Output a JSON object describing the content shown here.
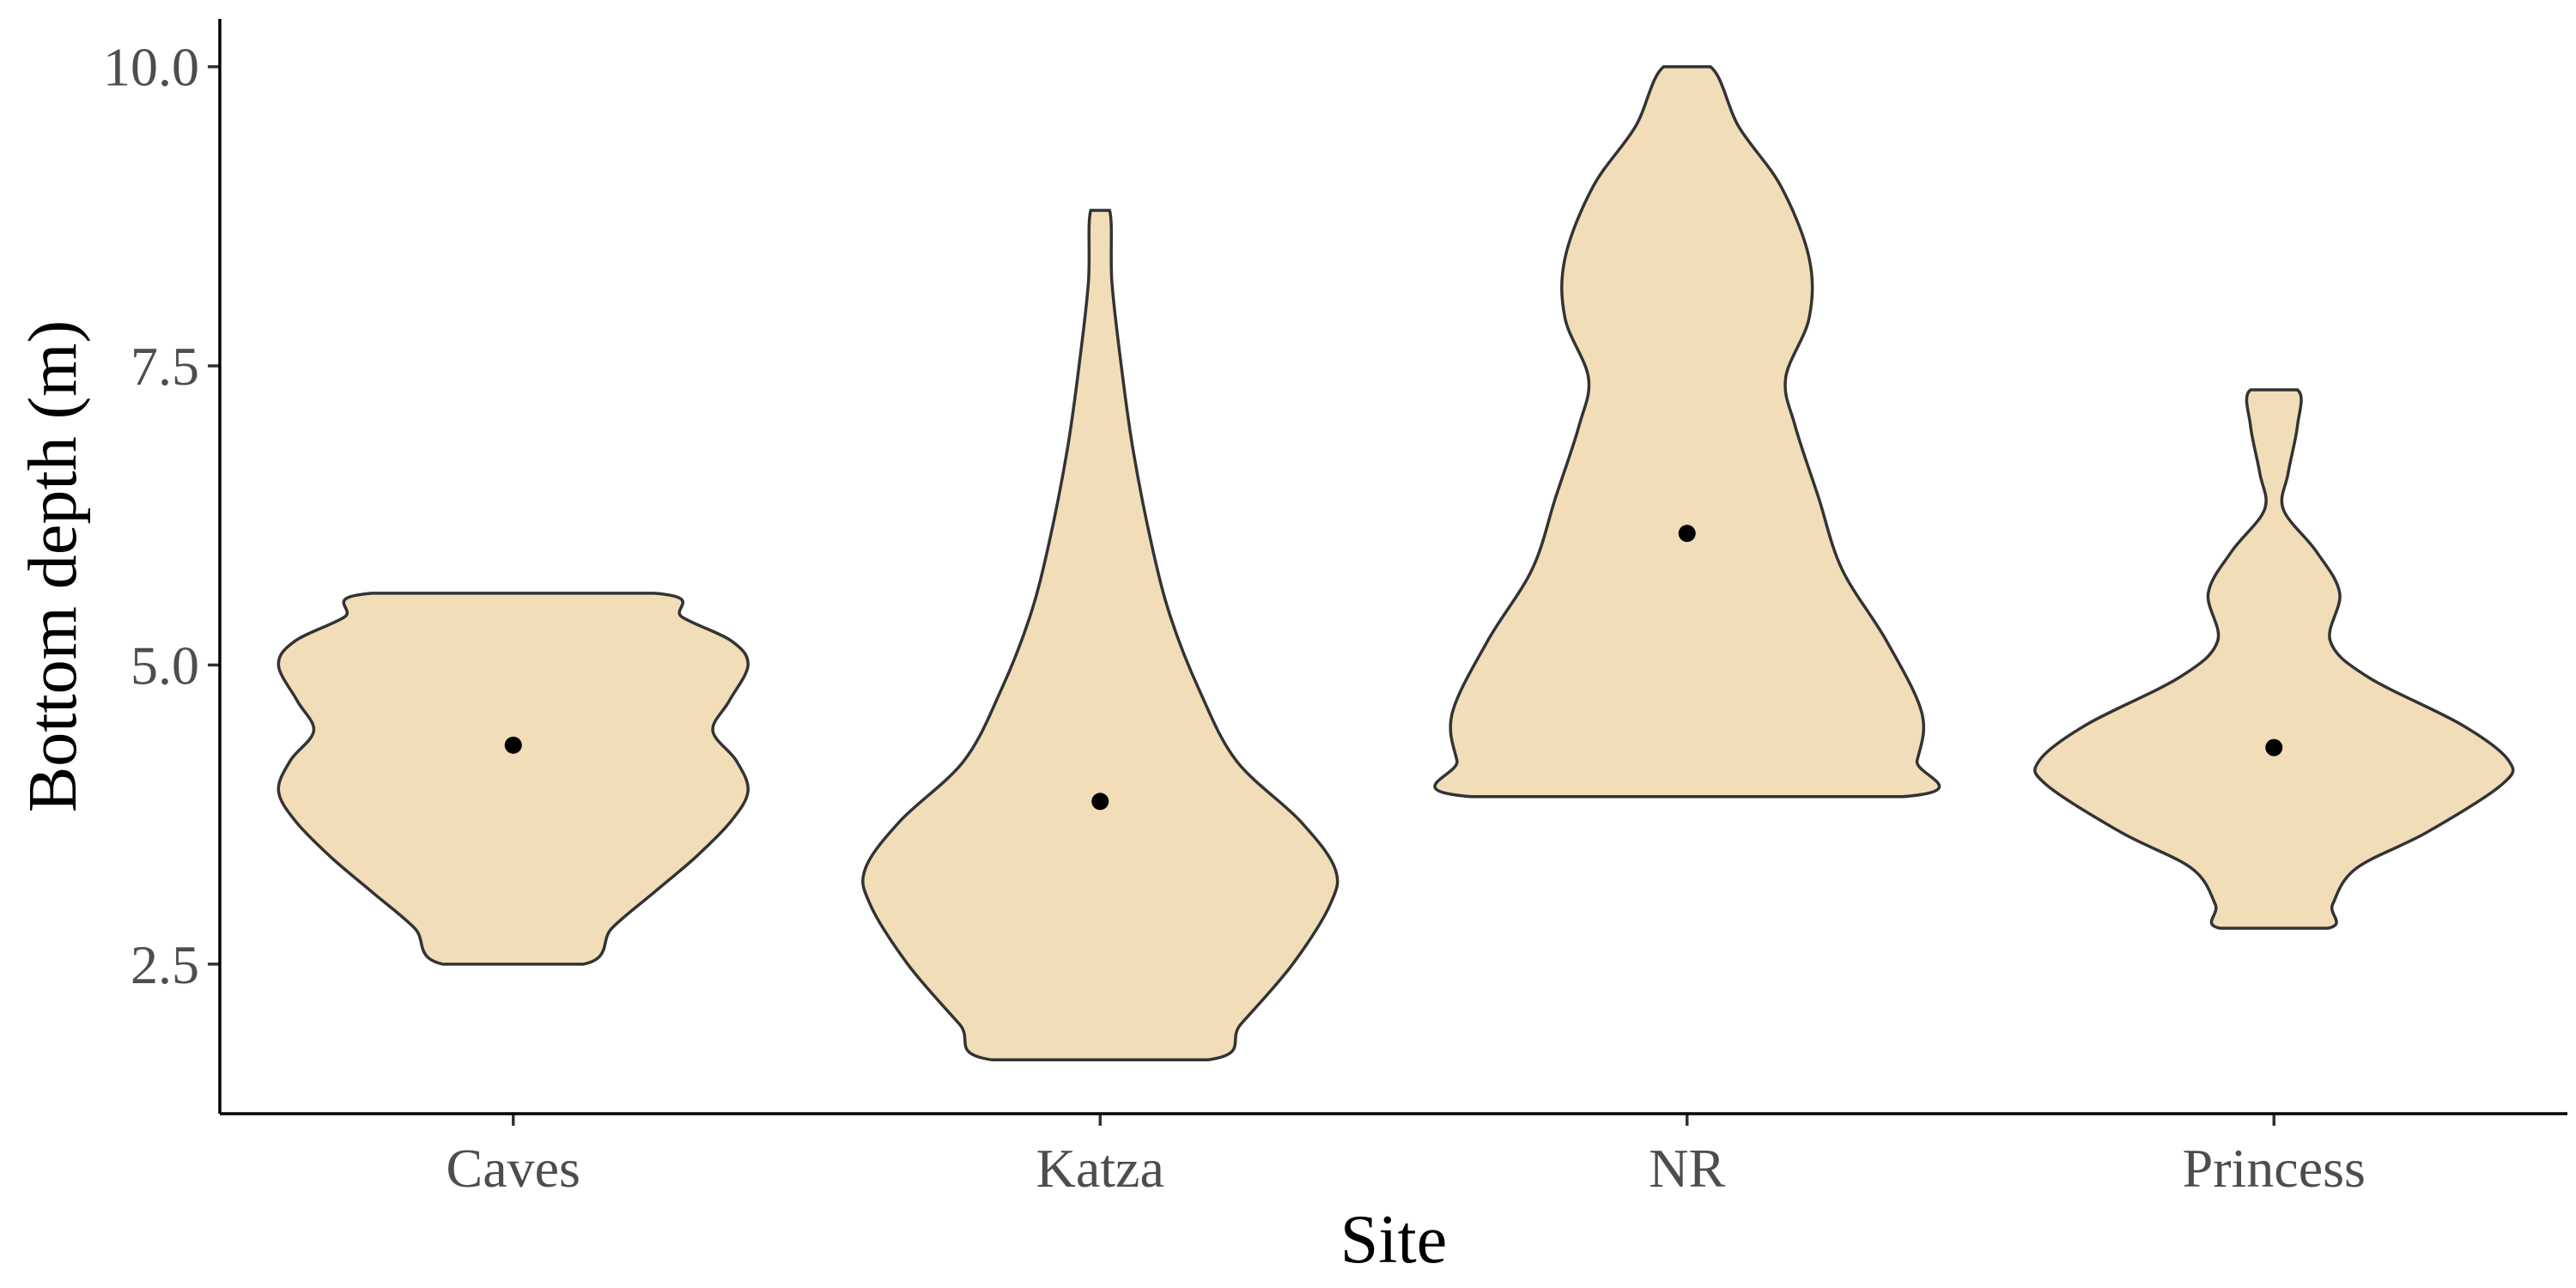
{
  "chart_data": {
    "type": "violin",
    "xlabel": "Site",
    "ylabel": "Bottom depth (m)",
    "categories": [
      "Caves",
      "Katza",
      "NR",
      "Princess"
    ],
    "ylim": [
      1.25,
      10.4
    ],
    "yticks": [
      "2.5",
      "5.0",
      "7.5",
      "10.0"
    ],
    "ytick_values": [
      2.5,
      5.0,
      7.5,
      10.0
    ],
    "fill_color": "#F1DDB8",
    "outline_color": "#333333",
    "point_color": "#000000",
    "grid": false,
    "legend": "none",
    "series": [
      {
        "category": "Caves",
        "min": 2.5,
        "max": 5.6,
        "mean": 4.33,
        "density": [
          [
            2.5,
            0.3
          ],
          [
            2.8,
            0.42
          ],
          [
            3.1,
            0.6
          ],
          [
            3.4,
            0.78
          ],
          [
            3.7,
            0.93
          ],
          [
            3.95,
            1.0
          ],
          [
            4.2,
            0.95
          ],
          [
            4.45,
            0.85
          ],
          [
            4.7,
            0.92
          ],
          [
            5.0,
            1.0
          ],
          [
            5.2,
            0.93
          ],
          [
            5.4,
            0.72
          ],
          [
            5.6,
            0.6
          ]
        ]
      },
      {
        "category": "Katza",
        "min": 1.7,
        "max": 8.8,
        "mean": 3.86,
        "density": [
          [
            1.7,
            0.46
          ],
          [
            2.0,
            0.6
          ],
          [
            2.5,
            0.82
          ],
          [
            3.0,
            0.98
          ],
          [
            3.3,
            1.0
          ],
          [
            3.7,
            0.85
          ],
          [
            4.2,
            0.58
          ],
          [
            4.8,
            0.42
          ],
          [
            5.4,
            0.3
          ],
          [
            6.0,
            0.22
          ],
          [
            6.8,
            0.14
          ],
          [
            7.5,
            0.09
          ],
          [
            8.2,
            0.05
          ],
          [
            8.8,
            0.04
          ]
        ]
      },
      {
        "category": "NR",
        "min": 3.9,
        "max": 10.0,
        "mean": 6.1,
        "density": [
          [
            3.9,
            0.92
          ],
          [
            4.2,
            0.98
          ],
          [
            4.6,
            1.0
          ],
          [
            5.2,
            0.85
          ],
          [
            5.8,
            0.66
          ],
          [
            6.4,
            0.56
          ],
          [
            7.0,
            0.46
          ],
          [
            7.4,
            0.42
          ],
          [
            7.9,
            0.52
          ],
          [
            8.4,
            0.52
          ],
          [
            9.0,
            0.4
          ],
          [
            9.5,
            0.22
          ],
          [
            10.0,
            0.1
          ]
        ]
      },
      {
        "category": "Princess",
        "min": 2.8,
        "max": 7.3,
        "mean": 4.31,
        "density": [
          [
            2.8,
            0.23
          ],
          [
            3.0,
            0.25
          ],
          [
            3.3,
            0.35
          ],
          [
            3.6,
            0.65
          ],
          [
            4.0,
            0.97
          ],
          [
            4.2,
            1.0
          ],
          [
            4.5,
            0.8
          ],
          [
            4.9,
            0.4
          ],
          [
            5.2,
            0.24
          ],
          [
            5.6,
            0.28
          ],
          [
            5.95,
            0.18
          ],
          [
            6.3,
            0.04
          ],
          [
            6.6,
            0.06
          ],
          [
            7.0,
            0.1
          ],
          [
            7.3,
            0.1
          ]
        ]
      }
    ]
  }
}
